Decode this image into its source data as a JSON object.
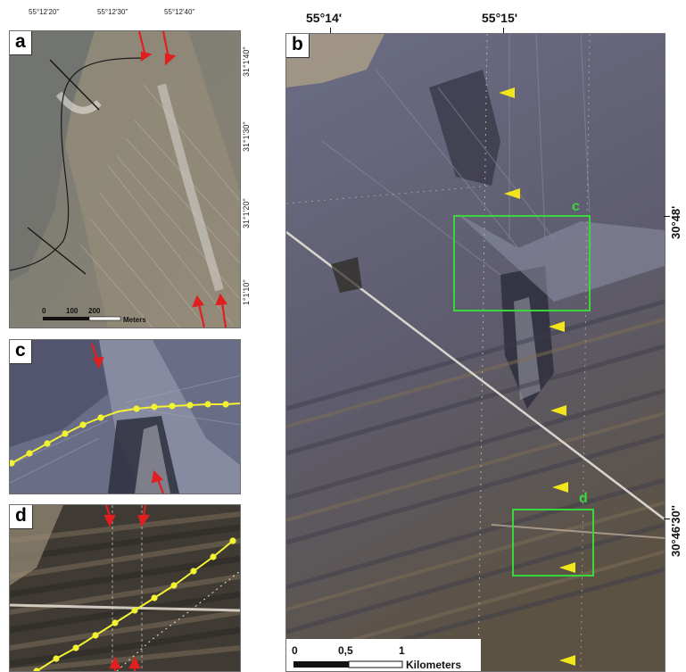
{
  "panels": {
    "a": {
      "label": "a",
      "top_coords": [
        "55°12'20''",
        "55°12'30''",
        "55°12'40''"
      ],
      "side_coords": [
        "31°1'40''",
        "31°1'30''",
        "31°1'20''",
        "1°1'10''"
      ],
      "scale": {
        "ticks": [
          "0",
          "100",
          "200"
        ],
        "unit": "Meters"
      }
    },
    "b": {
      "label": "b",
      "top_coords": [
        "55°14'",
        "55°15'"
      ],
      "side_coords": [
        "30°48'",
        "30°46'30''"
      ],
      "box_labels": [
        "c",
        "d"
      ],
      "scale": {
        "ticks": [
          "0",
          "0,5",
          "1"
        ],
        "unit": "Kilometers"
      }
    },
    "c": {
      "label": "c"
    },
    "d": {
      "label": "d"
    }
  },
  "colors": {
    "fault_dots": "#f2f233",
    "arrows": "#e02020",
    "boxes": "#3bd63b",
    "markers": "#f2e61a"
  }
}
